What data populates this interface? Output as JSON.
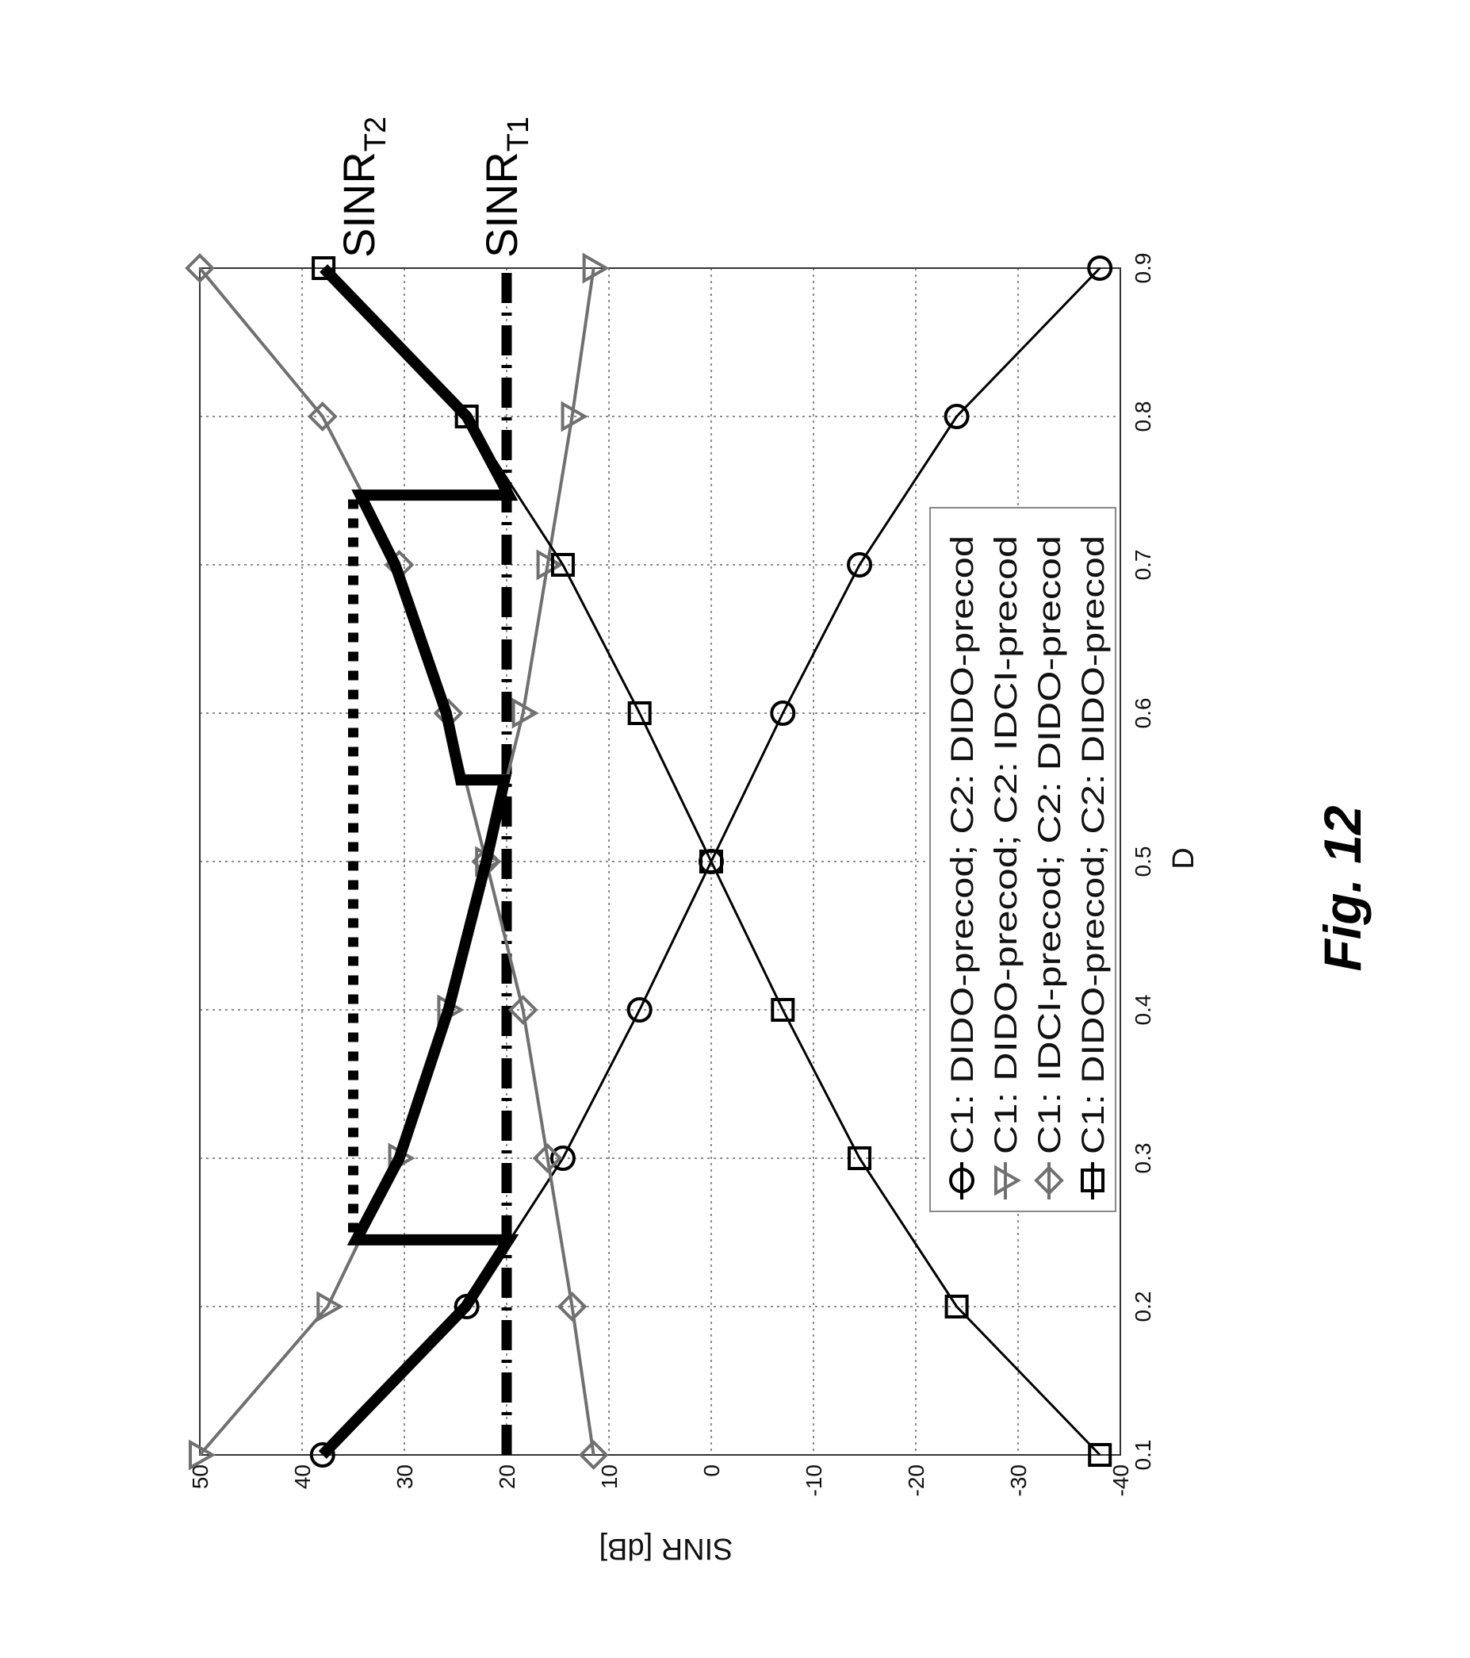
{
  "chart_data": {
    "type": "line",
    "orientation": "rotated 90 degrees counter-clockwise",
    "xlabel": "D",
    "ylabel": "SINR [dB]",
    "xlim": [
      0.1,
      0.9
    ],
    "ylim": [
      -40,
      50
    ],
    "xticks": [
      "0.1",
      "0.2",
      "0.3",
      "0.4",
      "0.5",
      "0.6",
      "0.7",
      "0.8",
      "0.9"
    ],
    "yticks": [
      "-40",
      "-30",
      "-20",
      "-10",
      "0",
      "10",
      "20",
      "30",
      "40",
      "50"
    ],
    "grid": true,
    "legend_placement": "lower-right (in rotated frame)",
    "x": [
      0.1,
      0.2,
      0.3,
      0.4,
      0.5,
      0.6,
      0.7,
      0.8,
      0.9
    ],
    "series": [
      {
        "name": "C1: DIDO-precod; C2: DIDO-precod",
        "marker": "circle",
        "color": "#000000",
        "values": [
          38,
          23.9,
          14.5,
          7,
          0,
          -7,
          -14.5,
          -24,
          -38
        ]
      },
      {
        "name": "C1: DIDO-precod; C2: IDCI-precod",
        "marker": "triangle-down",
        "color": "#707070",
        "values": [
          50,
          37.5,
          30.5,
          25.7,
          22,
          18.4,
          16,
          13.6,
          11.5
        ]
      },
      {
        "name": "C1: IDCI-precod; C2: DIDO-precod",
        "marker": "diamond",
        "color": "#707070",
        "values": [
          11.5,
          13.6,
          16,
          18.4,
          22,
          25.7,
          30.5,
          38,
          50
        ]
      },
      {
        "name": "C1: DIDO-precod; C2: DIDO-precod",
        "marker": "square",
        "color": "#000000",
        "values": [
          -38,
          -24,
          -14.5,
          -7,
          0,
          7,
          14.5,
          23.9,
          37.9
        ]
      }
    ],
    "switching_curve": {
      "points": [
        [
          0.1,
          38
        ],
        [
          0.15,
          31
        ],
        [
          0.2,
          24
        ],
        [
          0.245,
          19.8
        ],
        [
          0.245,
          34.7
        ],
        [
          0.3,
          30.5
        ],
        [
          0.4,
          25.7
        ],
        [
          0.5,
          22
        ],
        [
          0.555,
          20.2
        ],
        [
          0.555,
          24.5
        ],
        [
          0.6,
          25.9
        ],
        [
          0.7,
          30.9
        ],
        [
          0.747,
          34.3
        ],
        [
          0.747,
          19.8
        ],
        [
          0.8,
          23.9
        ],
        [
          0.9,
          37.9
        ]
      ]
    },
    "thresholds": [
      {
        "label": "SINR",
        "sub": "T1",
        "value": 20,
        "range": [
          0.1,
          0.9
        ],
        "style": "dash-dot"
      },
      {
        "label": "SINR",
        "sub": "T2",
        "value": 35,
        "range": [
          0.25,
          0.75
        ],
        "style": "dotted"
      }
    ]
  },
  "figure_label": "Fig. 12"
}
